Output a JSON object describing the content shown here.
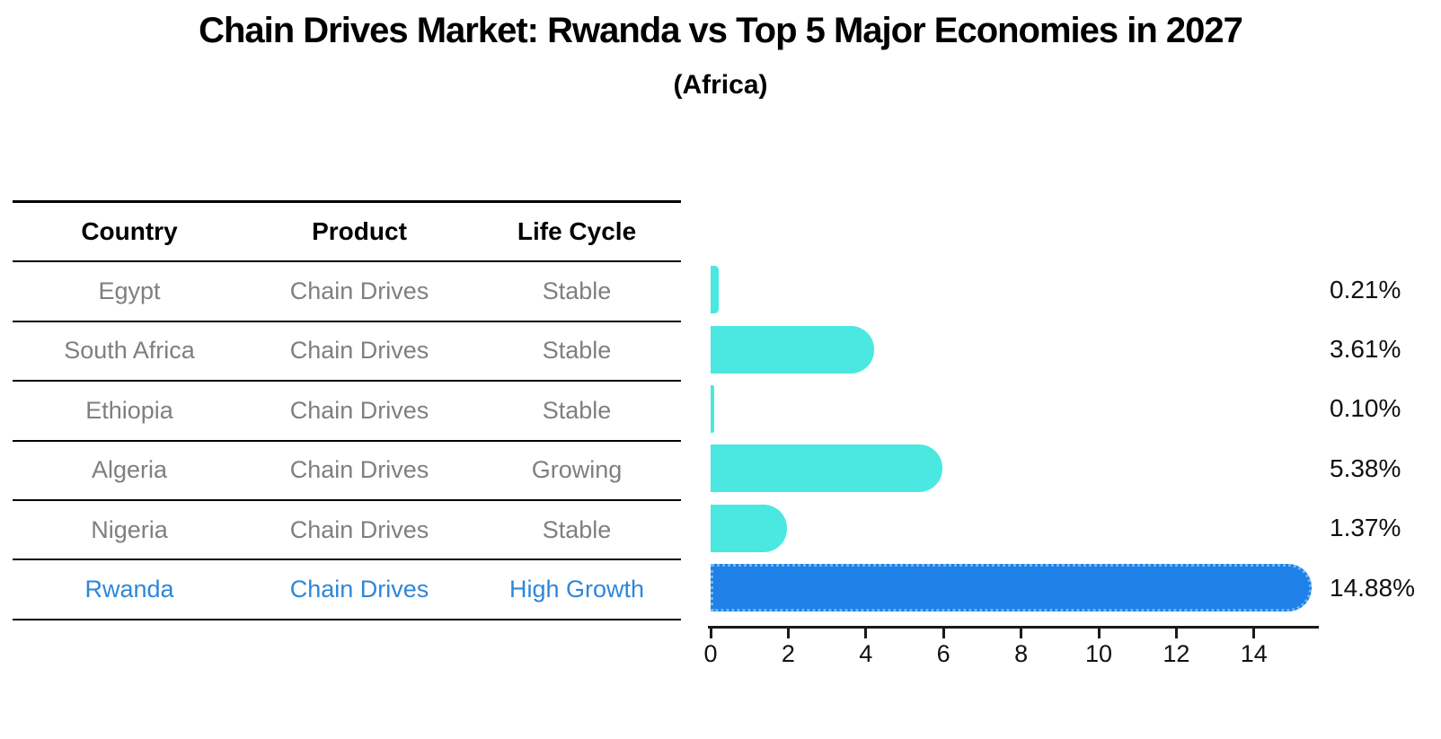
{
  "title": "Chain Drives Market: Rwanda vs Top 5 Major Economies in 2027",
  "subtitle": "(Africa)",
  "table": {
    "headers": [
      "Country",
      "Product",
      "Life Cycle"
    ],
    "rows": [
      {
        "country": "Egypt",
        "product": "Chain Drives",
        "life_cycle": "Stable",
        "highlight": false
      },
      {
        "country": "South Africa",
        "product": "Chain Drives",
        "life_cycle": "Stable",
        "highlight": false
      },
      {
        "country": "Ethiopia",
        "product": "Chain Drives",
        "life_cycle": "Stable",
        "highlight": false
      },
      {
        "country": "Algeria",
        "product": "Chain Drives",
        "life_cycle": "Growing",
        "highlight": false
      },
      {
        "country": "Nigeria",
        "product": "Chain Drives",
        "life_cycle": "Stable",
        "highlight": false
      },
      {
        "country": "Rwanda",
        "product": "Chain Drives",
        "life_cycle": "High Growth",
        "highlight": true
      }
    ]
  },
  "chart_data": {
    "type": "bar",
    "orientation": "horizontal",
    "title": "Chain Drives Market: Rwanda vs Top 5 Major Economies in 2027",
    "subtitle": "(Africa)",
    "categories": [
      "Egypt",
      "South Africa",
      "Ethiopia",
      "Algeria",
      "Nigeria",
      "Rwanda"
    ],
    "values": [
      0.21,
      3.61,
      0.1,
      5.38,
      1.37,
      14.88
    ],
    "value_labels": [
      "0.21%",
      "3.61%",
      "0.10%",
      "5.38%",
      "1.37%",
      "14.88%"
    ],
    "xlabel": "",
    "ylabel": "",
    "xticks": [
      0,
      2,
      4,
      6,
      8,
      10,
      12,
      14
    ],
    "xlim": [
      0,
      15.7
    ],
    "grid": false,
    "legend": false,
    "highlight_category": "Rwanda",
    "colors": {
      "bar_default": "#4AE8E0",
      "bar_highlight": "#1F80E8",
      "bar_highlight_border": "#6CB8F2",
      "highlight_text": "#2E86D9",
      "row_text": "#7F7F7F",
      "header_text": "#000000",
      "axis": "#1A1A1A"
    }
  }
}
